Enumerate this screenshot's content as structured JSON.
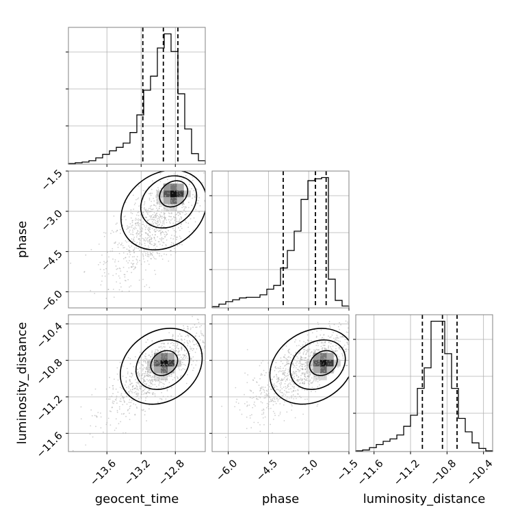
{
  "chart_data": {
    "type": "corner",
    "grid": true,
    "parameters": [
      {
        "name": "geocent_time",
        "label": "geocent_time",
        "range": [
          -14.05,
          -12.45
        ],
        "ticks": [
          -13.6,
          -13.2,
          -12.8
        ],
        "tick_labels": [
          "−13.6",
          "−13.2",
          "−12.8"
        ],
        "quantiles": [
          -13.18,
          -12.94,
          -12.77
        ]
      },
      {
        "name": "phase",
        "label": "phase",
        "range": [
          -6.6,
          -1.5
        ],
        "ticks": [
          -6.0,
          -4.5,
          -3.0,
          -1.5
        ],
        "tick_labels": [
          "−6.0",
          "−4.5",
          "−3.0",
          "−1.5"
        ],
        "quantiles": [
          -3.95,
          -2.75,
          -2.35
        ]
      },
      {
        "name": "luminosity_distance",
        "label": "luminosity_distance",
        "range": [
          -11.8,
          -10.3
        ],
        "ticks": [
          -11.6,
          -11.2,
          -10.8,
          -10.4
        ],
        "tick_labels": [
          "−11.6",
          "−11.2",
          "−10.8",
          "−10.4"
        ],
        "quantiles": [
          -11.07,
          -10.85,
          -10.69
        ]
      }
    ],
    "histograms": [
      {
        "param": "geocent_time",
        "bins": [
          -14.05,
          -13.97,
          -13.89,
          -13.81,
          -13.73,
          -13.65,
          -13.57,
          -13.49,
          -13.41,
          -13.33,
          -13.25,
          -13.17,
          -13.09,
          -13.01,
          -12.93,
          -12.85,
          -12.77,
          -12.69,
          -12.61,
          -12.53,
          -12.45
        ],
        "counts": [
          1,
          2,
          3,
          5,
          9,
          14,
          19,
          24,
          30,
          45,
          70,
          105,
          125,
          165,
          185,
          160,
          100,
          50,
          15,
          5
        ]
      },
      {
        "param": "phase",
        "bins": [
          -6.6,
          -6.345,
          -6.09,
          -5.835,
          -5.58,
          -5.325,
          -5.07,
          -4.815,
          -4.56,
          -4.305,
          -4.05,
          -3.795,
          -3.54,
          -3.285,
          -3.03,
          -2.775,
          -2.52,
          -2.265,
          -2.01,
          -1.755,
          -1.5
        ],
        "counts": [
          2,
          6,
          10,
          13,
          16,
          17,
          17,
          21,
          30,
          36,
          64,
          92,
          123,
          174,
          204,
          207,
          209,
          46,
          12,
          3
        ]
      },
      {
        "param": "luminosity_distance",
        "bins": [
          -11.8,
          -11.725,
          -11.65,
          -11.575,
          -11.5,
          -11.425,
          -11.35,
          -11.275,
          -11.2,
          -11.125,
          -11.05,
          -10.975,
          -10.9,
          -10.825,
          -10.75,
          -10.675,
          -10.6,
          -10.525,
          -10.45,
          -10.375,
          -10.3
        ],
        "counts": [
          1,
          2,
          5,
          9,
          13,
          16,
          21,
          32,
          46,
          80,
          106,
          165,
          165,
          124,
          80,
          42,
          25,
          11,
          4,
          1
        ]
      }
    ],
    "pairs": [
      {
        "x": "geocent_time",
        "y": "phase",
        "mean": [
          -13.05,
          -3.55
        ],
        "sd": [
          0.28,
          1.0
        ],
        "corr": 0.65,
        "mode": [
          -12.82,
          -2.35
        ],
        "contour_levels": [
          0.39,
          0.86,
          0.99
        ]
      },
      {
        "x": "geocent_time",
        "y": "luminosity_distance",
        "mean": [
          -13.0,
          -10.9
        ],
        "sd": [
          0.3,
          0.25
        ],
        "corr": 0.8,
        "mode": [
          -12.93,
          -10.83
        ],
        "contour_levels": [
          0.39,
          0.86,
          0.99
        ]
      },
      {
        "x": "phase",
        "y": "luminosity_distance",
        "mean": [
          -3.3,
          -10.9
        ],
        "sd": [
          1.0,
          0.25
        ],
        "corr": 0.75,
        "mode": [
          -2.45,
          -10.83
        ],
        "contour_levels": [
          0.39,
          0.86,
          0.99
        ]
      }
    ]
  },
  "colors": {
    "line": "#000000",
    "grid": "#b0b0b0",
    "scatter": "#a8a8a8",
    "frame": "#808080"
  }
}
